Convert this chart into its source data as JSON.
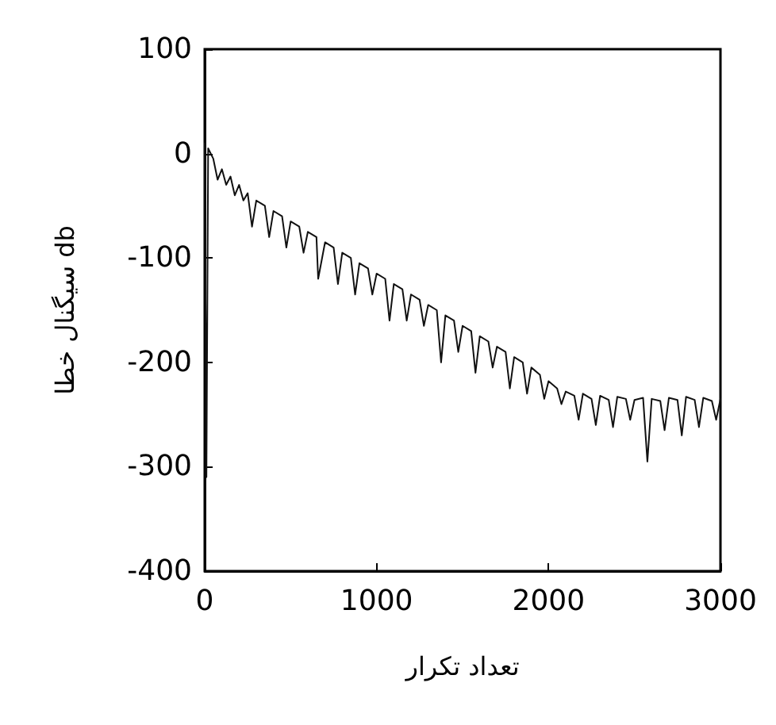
{
  "chart_data": {
    "type": "line",
    "xlabel": "تعداد تکرار",
    "ylabel": "سیگنال خطا db",
    "x": [
      0,
      10,
      20,
      50,
      75,
      100,
      125,
      150,
      175,
      200,
      225,
      250,
      275,
      300,
      350,
      375,
      400,
      450,
      475,
      500,
      550,
      575,
      600,
      650,
      660,
      700,
      750,
      775,
      800,
      850,
      875,
      900,
      950,
      975,
      1000,
      1050,
      1075,
      1100,
      1150,
      1175,
      1200,
      1250,
      1275,
      1300,
      1350,
      1375,
      1400,
      1450,
      1475,
      1500,
      1550,
      1575,
      1600,
      1650,
      1675,
      1700,
      1750,
      1775,
      1800,
      1850,
      1875,
      1900,
      1950,
      1975,
      2000,
      2050,
      2075,
      2100,
      2150,
      2175,
      2200,
      2250,
      2275,
      2300,
      2350,
      2375,
      2400,
      2450,
      2475,
      2500,
      2550,
      2575,
      2600,
      2650,
      2675,
      2700,
      2750,
      2775,
      2800,
      2850,
      2875,
      2900,
      2950,
      2975,
      3000
    ],
    "series": [
      {
        "color": "#111111",
        "values": [
          10,
          -310,
          5,
          -5,
          -25,
          -15,
          -30,
          -22,
          -40,
          -30,
          -45,
          -38,
          -70,
          -45,
          -50,
          -80,
          -55,
          -60,
          -90,
          -65,
          -70,
          -95,
          -75,
          -80,
          -120,
          -85,
          -90,
          -125,
          -95,
          -100,
          -135,
          -105,
          -110,
          -135,
          -115,
          -120,
          -160,
          -125,
          -130,
          -160,
          -135,
          -140,
          -165,
          -145,
          -150,
          -200,
          -155,
          -160,
          -190,
          -165,
          -170,
          -210,
          -175,
          -180,
          -205,
          -185,
          -190,
          -225,
          -195,
          -200,
          -230,
          -205,
          -212,
          -235,
          -218,
          -225,
          -240,
          -228,
          -232,
          -255,
          -230,
          -235,
          -260,
          -232,
          -236,
          -262,
          -233,
          -235,
          -255,
          -236,
          -234,
          -295,
          -235,
          -237,
          -265,
          -234,
          -236,
          -270,
          -233,
          -236,
          -262,
          -234,
          -237,
          -255,
          -235
        ]
      }
    ],
    "xlim": [
      0,
      3000
    ],
    "xticks": [
      0,
      1000,
      2000,
      3000
    ],
    "ylim": [
      -400,
      100
    ],
    "yticks": [
      -400,
      -300,
      -200,
      -100,
      0,
      100
    ],
    "grid": false,
    "marker": "none",
    "line_style": "solid"
  }
}
